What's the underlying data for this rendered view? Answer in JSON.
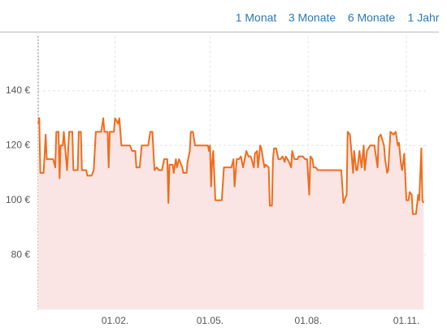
{
  "nav": [
    "1 Monat",
    "3 Monate",
    "6 Monate",
    "1 Jahr"
  ],
  "chart_data": {
    "type": "line",
    "color": "#ee6d1c",
    "fill": "#fbe5e4",
    "grid": true,
    "xlim": [
      0,
      364
    ],
    "xticks": [
      {
        "value": 72,
        "label": "01.02."
      },
      {
        "value": 161,
        "label": "01.05."
      },
      {
        "value": 253,
        "label": "01.08."
      },
      {
        "value": 345,
        "label": "01.11."
      }
    ],
    "ylim": [
      60,
      160
    ],
    "yticks": [
      {
        "value": 80,
        "label": "80 €"
      },
      {
        "value": 100,
        "label": "100 €"
      },
      {
        "value": 120,
        "label": "120 €"
      },
      {
        "value": 140,
        "label": "140 €"
      }
    ],
    "x": [
      0,
      1,
      2,
      5,
      7,
      8,
      14,
      16,
      17,
      19,
      20,
      21,
      23,
      24,
      27,
      29,
      32,
      33,
      37,
      38,
      40,
      41,
      45,
      46,
      50,
      52,
      54,
      59,
      61,
      62,
      65,
      66,
      67,
      71,
      72,
      75,
      76,
      78,
      86,
      88,
      91,
      92,
      95,
      97,
      103,
      105,
      107,
      109,
      111,
      113,
      116,
      118,
      121,
      122,
      123,
      126,
      127,
      129,
      130,
      132,
      135,
      136,
      139,
      140,
      142,
      143,
      145,
      147,
      159,
      160,
      161,
      162,
      163,
      164,
      166,
      172,
      174,
      176,
      181,
      183,
      184,
      186,
      188,
      190,
      192,
      195,
      197,
      199,
      200,
      202,
      203,
      205,
      206,
      208,
      209,
      212,
      213,
      216,
      217,
      219,
      220,
      221,
      223,
      225,
      227,
      229,
      231,
      232,
      235,
      237,
      238,
      240,
      243,
      244,
      248,
      250,
      252,
      254,
      255,
      257,
      258,
      260,
      262,
      265,
      284,
      286,
      287,
      289,
      290,
      292,
      293,
      295,
      296,
      298,
      299,
      301,
      303,
      305,
      306,
      308,
      311,
      315,
      318,
      319,
      321,
      324,
      325,
      327,
      328,
      330,
      333,
      335,
      337,
      338,
      340,
      341,
      343,
      345,
      347,
      348,
      350,
      351,
      354,
      356,
      357,
      359,
      360,
      361
    ],
    "values": [
      128,
      130,
      110,
      110,
      124,
      115,
      115,
      112,
      125,
      125,
      108,
      120,
      120,
      125,
      111,
      125,
      125,
      111,
      111,
      125,
      125,
      111,
      111,
      109,
      109,
      111,
      125,
      125,
      130,
      125,
      125,
      112,
      125,
      125,
      130,
      128,
      130,
      120,
      120,
      118,
      118,
      112,
      112,
      120,
      120,
      125,
      125,
      111,
      112,
      111,
      111,
      115,
      115,
      99,
      113,
      113,
      110,
      115,
      112,
      115,
      112,
      110,
      110,
      114,
      118,
      125,
      125,
      120,
      120,
      118,
      120,
      105,
      114,
      118,
      100,
      100,
      112,
      112,
      112,
      115,
      105,
      115,
      115,
      116,
      112,
      118,
      116,
      116,
      115,
      112,
      117,
      118,
      112,
      120,
      119,
      112,
      113,
      112,
      98,
      98,
      115,
      119,
      119,
      115,
      115,
      116,
      114,
      116,
      114,
      112,
      118,
      115,
      115,
      116,
      116,
      115,
      115,
      102,
      116,
      115,
      112,
      112,
      111,
      111,
      111,
      99,
      100,
      102,
      125,
      124,
      120,
      110,
      118,
      111,
      111,
      118,
      112,
      120,
      111,
      118,
      120,
      120,
      112,
      123,
      124,
      120,
      115,
      110,
      111,
      125,
      124,
      125,
      120,
      121,
      113,
      111,
      117,
      100,
      100,
      103,
      102,
      95,
      95,
      102,
      100,
      119,
      100,
      99
    ]
  }
}
